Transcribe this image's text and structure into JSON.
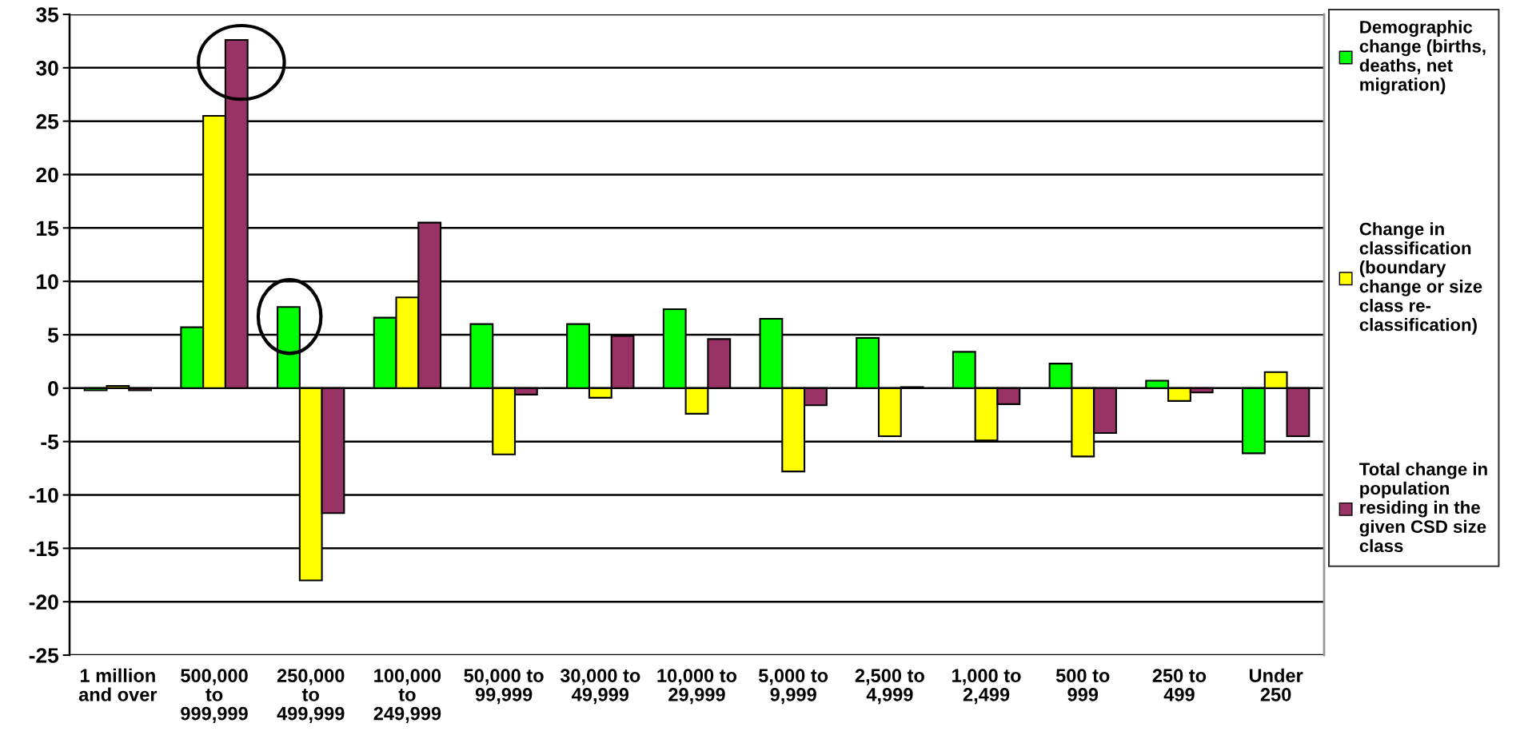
{
  "chart_data": {
    "type": "bar",
    "categories": [
      "1 million\nand over",
      "500,000\nto\n999,999",
      "250,000\nto\n499,999",
      "100,000\nto\n249,999",
      "50,000 to\n99,999",
      "30,000 to\n49,999",
      "10,000 to\n29,999",
      "5,000 to\n9,999",
      "2,500 to\n4,999",
      "1,000 to\n2,499",
      "500 to\n999",
      "250 to\n499",
      "Under\n250"
    ],
    "series": [
      {
        "name": "Demographic\nchange (births,\ndeaths, net\nmigration)",
        "color": "#00ff00",
        "values": [
          -0.2,
          5.7,
          7.6,
          6.6,
          6.0,
          6.0,
          7.4,
          6.5,
          4.7,
          3.4,
          2.3,
          0.7,
          -6.1
        ]
      },
      {
        "name": "Change in\nclassification\n(boundary\nchange or size\nclass re-\nclassification)",
        "color": "#ffff00",
        "values": [
          0.2,
          25.5,
          -18.0,
          8.5,
          -6.2,
          -0.9,
          -2.4,
          -7.8,
          -4.5,
          -4.9,
          -6.4,
          -1.2,
          1.5
        ]
      },
      {
        "name": "Total change in\npopulation\nresiding in the\ngiven CSD size\nclass",
        "color": "#993366",
        "values": [
          -0.2,
          32.6,
          -11.7,
          15.5,
          -0.6,
          4.9,
          4.6,
          -1.6,
          0.1,
          -1.5,
          -4.2,
          -0.4,
          -4.5
        ]
      }
    ],
    "ylim": [
      -25,
      35
    ],
    "yticks": [
      -25,
      -20,
      -15,
      -10,
      -5,
      0,
      5,
      10,
      15,
      20,
      25,
      30,
      35
    ],
    "grid": "y",
    "legend": "right"
  }
}
